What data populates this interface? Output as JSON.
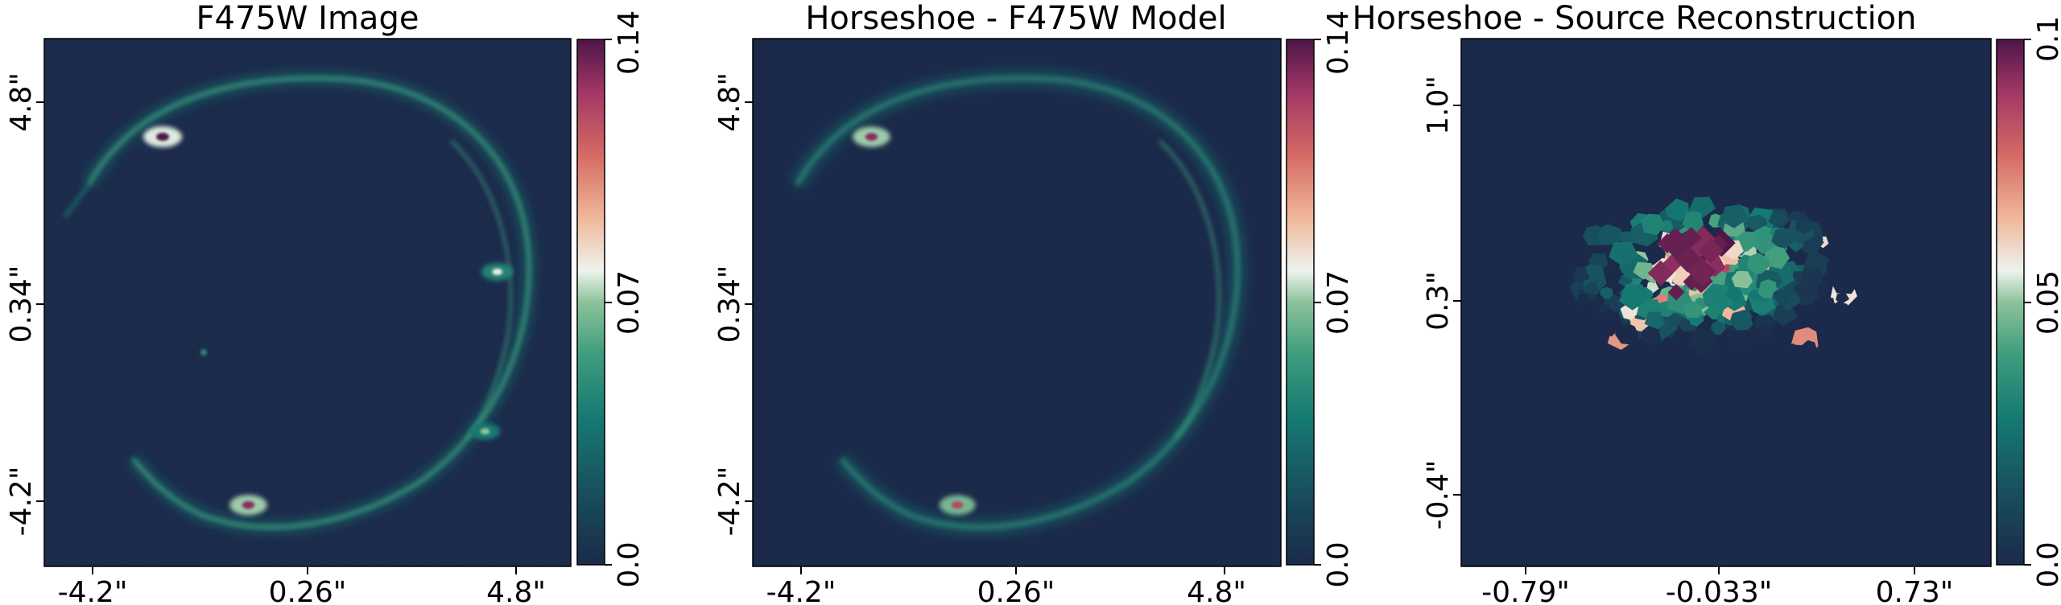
{
  "figure": {
    "colors": {
      "background": "#1b2a4a",
      "colormap": [
        "#1b2a4a",
        "#184a5b",
        "#157a72",
        "#3e9c7d",
        "#8cc39a",
        "#eef3ee",
        "#f0b79a",
        "#d56a63",
        "#a13766",
        "#4e1548"
      ]
    }
  },
  "chart_data": [
    {
      "type": "heatmap",
      "title": "F475W Image",
      "xlabel": "",
      "ylabel": "",
      "x_tick_labels": [
        "-4.2\"",
        "0.26\"",
        "4.8\""
      ],
      "y_tick_labels": [
        "4.8\"",
        "0.34\"",
        "-4.2\""
      ],
      "colorbar": {
        "ticks": [
          "0.0",
          "0.07",
          "0.14"
        ],
        "range": [
          0.0,
          0.14
        ],
        "colormap": "cmr_rainforest-like (navy → teal → white → salmon → purple)"
      },
      "content": "Einstein ring (Cosmic Horseshoe lens), bright knots at upper-left and lower-left, noisy background",
      "features": [
        {
          "x": -3.3,
          "y": 4.7,
          "value": 0.14
        },
        {
          "x": -1.2,
          "y": -4.3,
          "value": 0.13
        },
        {
          "x": 4.9,
          "y": 1.4,
          "value": 0.08
        },
        {
          "x": 4.6,
          "y": -2.5,
          "value": 0.07
        }
      ]
    },
    {
      "type": "heatmap",
      "title": "Horseshoe - F475W Model",
      "xlabel": "",
      "ylabel": "",
      "x_tick_labels": [
        "-4.2\"",
        "0.26\"",
        "4.8\""
      ],
      "y_tick_labels": [
        "4.8\"",
        "0.34\"",
        "-4.2\""
      ],
      "colorbar": {
        "ticks": [
          "0.0",
          "0.07",
          "0.14"
        ],
        "range": [
          0.0,
          0.14
        ],
        "colormap": "cmr_rainforest-like (navy → teal → white → salmon → purple)"
      },
      "content": "Smooth model of the lensed ring, no noise",
      "features": [
        {
          "x": -3.3,
          "y": 4.7,
          "value": 0.13
        },
        {
          "x": -1.2,
          "y": -4.3,
          "value": 0.12
        }
      ]
    },
    {
      "type": "heatmap",
      "title": "Horseshoe - Source Reconstruction",
      "xlabel": "",
      "ylabel": "",
      "x_tick_labels": [
        "-0.79\"",
        "-0.033\"",
        "0.73\""
      ],
      "y_tick_labels": [
        "1.0\"",
        "0.3\"",
        "-0.4\""
      ],
      "colorbar": {
        "ticks": [
          "0.0",
          "0.05",
          "0.1"
        ],
        "range": [
          0.0,
          0.1
        ],
        "colormap": "cmr_rainforest-like (navy → teal → white → salmon → purple)"
      },
      "content": "Voronoi-mesh source reconstruction, compact irregular source near center-left",
      "features": [
        {
          "x": -0.1,
          "y": 0.35,
          "value": 0.1
        },
        {
          "x": 0.3,
          "y": 0.4,
          "value": 0.06
        }
      ]
    }
  ]
}
